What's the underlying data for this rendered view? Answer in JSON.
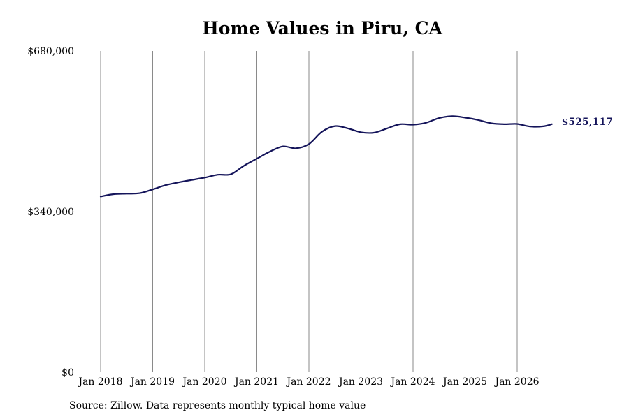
{
  "chart_data": {
    "type": "line",
    "title": "Home Values in Piru, CA",
    "source": "Source: Zillow. Data represents monthly typical home value",
    "ylim": [
      0,
      680000
    ],
    "y_ticks": [
      {
        "value": 0,
        "label": "$0"
      },
      {
        "value": 340000,
        "label": "$340,000"
      },
      {
        "value": 680000,
        "label": "$680,000"
      }
    ],
    "x_ticks": [
      "Jan 2018",
      "Jan 2019",
      "Jan 2020",
      "Jan 2021",
      "Jan 2022",
      "Jan 2023",
      "Jan 2024",
      "Jan 2025",
      "Jan 2026"
    ],
    "grid": "vertical",
    "line_color": "#14145a",
    "last_value_label": "$525,117",
    "series": [
      {
        "values": [
          {
            "x": "2018-01",
            "y": 372000
          },
          {
            "x": "2018-04",
            "y": 377000
          },
          {
            "x": "2018-07",
            "y": 378000
          },
          {
            "x": "2018-10",
            "y": 379000
          },
          {
            "x": "2019-01",
            "y": 387000
          },
          {
            "x": "2019-04",
            "y": 396000
          },
          {
            "x": "2019-07",
            "y": 402000
          },
          {
            "x": "2019-10",
            "y": 407000
          },
          {
            "x": "2020-01",
            "y": 412000
          },
          {
            "x": "2020-04",
            "y": 418000
          },
          {
            "x": "2020-07",
            "y": 419000
          },
          {
            "x": "2020-10",
            "y": 437000
          },
          {
            "x": "2021-01",
            "y": 452000
          },
          {
            "x": "2021-04",
            "y": 467000
          },
          {
            "x": "2021-07",
            "y": 478000
          },
          {
            "x": "2021-10",
            "y": 474000
          },
          {
            "x": "2022-01",
            "y": 483000
          },
          {
            "x": "2022-04",
            "y": 509000
          },
          {
            "x": "2022-07",
            "y": 521000
          },
          {
            "x": "2022-10",
            "y": 516000
          },
          {
            "x": "2023-01",
            "y": 508000
          },
          {
            "x": "2023-04",
            "y": 507000
          },
          {
            "x": "2023-07",
            "y": 516000
          },
          {
            "x": "2023-10",
            "y": 525000
          },
          {
            "x": "2024-01",
            "y": 524000
          },
          {
            "x": "2024-04",
            "y": 528000
          },
          {
            "x": "2024-07",
            "y": 538000
          },
          {
            "x": "2024-10",
            "y": 542000
          },
          {
            "x": "2025-01",
            "y": 539000
          },
          {
            "x": "2025-04",
            "y": 534000
          },
          {
            "x": "2025-07",
            "y": 527000
          },
          {
            "x": "2025-10",
            "y": 525000
          },
          {
            "x": "2026-01",
            "y": 525500
          },
          {
            "x": "2026-04",
            "y": 520000
          },
          {
            "x": "2026-07",
            "y": 520500
          },
          {
            "x": "2026-09",
            "y": 525117
          }
        ]
      }
    ]
  }
}
